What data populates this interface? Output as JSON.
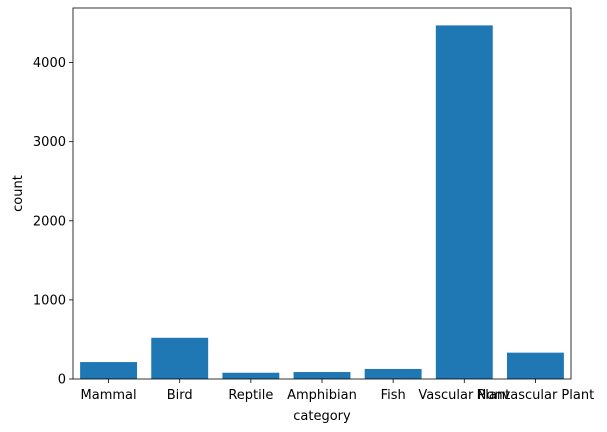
{
  "chart_data": {
    "type": "bar",
    "title": "",
    "xlabel": "category",
    "ylabel": "count",
    "categories": [
      "Mammal",
      "Bird",
      "Reptile",
      "Amphibian",
      "Fish",
      "Vascular Plant",
      "Nonvascular Plant"
    ],
    "values": [
      214,
      521,
      79,
      88,
      127,
      4470,
      333
    ],
    "ylim": [
      0,
      4690
    ],
    "yticks": [
      0,
      1000,
      2000,
      3000,
      4000
    ],
    "ytick_labels": [
      "0",
      "1000",
      "2000",
      "3000",
      "4000"
    ],
    "grid": false,
    "legend": "none",
    "bar_color": "#1f77b4"
  }
}
